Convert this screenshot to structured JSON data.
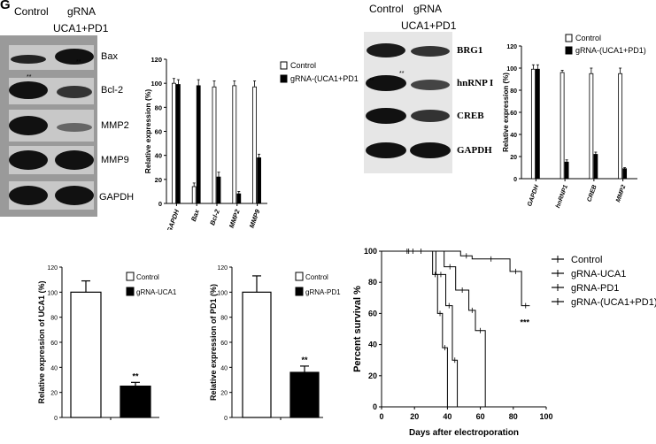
{
  "panel_letter": "G",
  "blot1": {
    "header_left": "Control",
    "header_right": "gRNA",
    "header_sub": "UCA1+PD1",
    "rows": [
      "Bax",
      "Bcl-2",
      "MMP2",
      "MMP9",
      "GAPDH"
    ],
    "marks": [
      "**",
      "**"
    ]
  },
  "blot2": {
    "header_left": "Control",
    "header_right": "gRNA",
    "header_sub": "UCA1+PD1",
    "rows": [
      "BRG1",
      "hnRNP I",
      "CREB",
      "GAPDH"
    ],
    "marks": [
      "**",
      "**"
    ]
  },
  "colors": {
    "control": "#ffffff",
    "treated": "#000000",
    "band": "#1a1a1a",
    "blot_bg": "#9a9a9a"
  },
  "chart_data": [
    {
      "type": "bar",
      "ylabel": "Relative expression (%)",
      "ylim": [
        0,
        120
      ],
      "yticks": [
        0,
        20,
        40,
        60,
        80,
        100,
        120
      ],
      "categories": [
        "GAPDH",
        "Bax",
        "Bcl-2",
        "MMP2",
        "MMP9"
      ],
      "series": [
        {
          "name": "Control",
          "values": [
            100,
            14,
            97,
            98,
            97
          ],
          "err": [
            4,
            3,
            5,
            4,
            5
          ]
        },
        {
          "name": "gRNA-(UCA1+PD1)",
          "values": [
            99,
            98,
            22,
            8,
            38
          ],
          "err": [
            4,
            5,
            4,
            2,
            3
          ]
        }
      ],
      "legend": "top-right"
    },
    {
      "type": "bar",
      "ylabel": "Relative expression (%)",
      "ylim": [
        0,
        120
      ],
      "yticks": [
        0,
        20,
        40,
        60,
        80,
        100,
        120
      ],
      "categories": [
        "GAPDH",
        "hnRNP1",
        "CREB",
        "MMP2"
      ],
      "series": [
        {
          "name": "Control",
          "values": [
            99,
            96,
            95,
            95
          ],
          "err": [
            4,
            2,
            5,
            5
          ]
        },
        {
          "name": "gRNA-(UCA1+PD1)",
          "values": [
            99,
            15,
            22,
            9
          ],
          "err": [
            4,
            2,
            2,
            1
          ]
        }
      ],
      "legend": "top-right"
    },
    {
      "type": "bar",
      "ylabel": "Relative expression of UCA1 (%)",
      "ylim": [
        0,
        120
      ],
      "yticks": [
        0,
        20,
        40,
        60,
        80,
        100,
        120
      ],
      "categories": [
        "Control",
        "gRNA-UCA1"
      ],
      "series": [
        {
          "name": "Control",
          "values": [
            100,
            null
          ],
          "err": [
            9,
            null
          ]
        },
        {
          "name": "gRNA-UCA1",
          "values": [
            null,
            25
          ],
          "err": [
            null,
            3
          ]
        }
      ],
      "significance": "**",
      "legend": "top-right"
    },
    {
      "type": "bar",
      "ylabel": "Relative expression of PD1 (%)",
      "ylim": [
        0,
        120
      ],
      "yticks": [
        0,
        20,
        40,
        60,
        80,
        100,
        120
      ],
      "categories": [
        "Control",
        "gRNA-PD1"
      ],
      "series": [
        {
          "name": "Control",
          "values": [
            100,
            null
          ],
          "err": [
            13,
            null
          ]
        },
        {
          "name": "gRNA-PD1",
          "values": [
            null,
            36
          ],
          "err": [
            null,
            5
          ]
        }
      ],
      "significance": "**",
      "legend": "top-right"
    },
    {
      "type": "line",
      "subtype": "step",
      "xlabel": "Days after electroporation",
      "ylabel": "Percent survival %",
      "xlim": [
        0,
        100
      ],
      "ylim": [
        0,
        100
      ],
      "xticks": [
        0,
        20,
        40,
        60,
        80,
        100
      ],
      "yticks": [
        0,
        20,
        40,
        60,
        80,
        100
      ],
      "series": [
        {
          "name": "Control",
          "x": [
            0,
            31,
            34,
            37,
            40
          ],
          "y": [
            100,
            85,
            60,
            38,
            0
          ]
        },
        {
          "name": "gRNA-UCA1",
          "x": [
            0,
            33,
            39,
            43,
            46
          ],
          "y": [
            100,
            85,
            65,
            30,
            0
          ]
        },
        {
          "name": "gRNA-PD1",
          "x": [
            0,
            38,
            45,
            53,
            57,
            63
          ],
          "y": [
            100,
            90,
            75,
            62,
            49,
            0
          ]
        },
        {
          "name": "gRNA-(UCA1+PD1)",
          "x": [
            0,
            48,
            55,
            78,
            85,
            90
          ],
          "y": [
            100,
            97,
            95,
            87,
            65,
            65
          ]
        }
      ],
      "significance": "***",
      "legend": "right"
    }
  ]
}
